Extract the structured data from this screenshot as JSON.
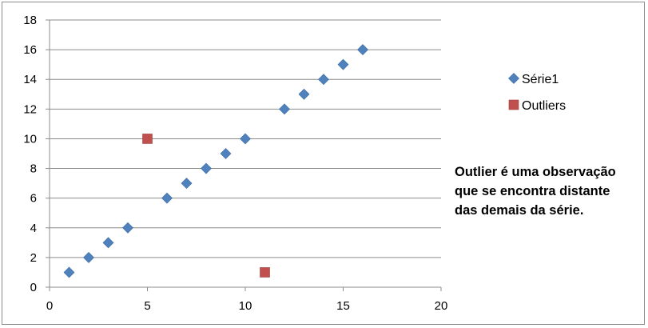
{
  "chart_data": {
    "type": "scatter",
    "title": "",
    "xlabel": "",
    "ylabel": "",
    "xlim": [
      0,
      20
    ],
    "ylim": [
      0,
      18
    ],
    "x_ticks": [
      0,
      5,
      10,
      15,
      20
    ],
    "y_ticks": [
      0,
      2,
      4,
      6,
      8,
      10,
      12,
      14,
      16,
      18
    ],
    "grid": "horizontal",
    "legend_position": "right",
    "series": [
      {
        "name": "Série1",
        "marker": "diamond",
        "color": "#4F81BD",
        "points": [
          {
            "x": 1,
            "y": 1
          },
          {
            "x": 2,
            "y": 2
          },
          {
            "x": 3,
            "y": 3
          },
          {
            "x": 4,
            "y": 4
          },
          {
            "x": 6,
            "y": 6
          },
          {
            "x": 7,
            "y": 7
          },
          {
            "x": 8,
            "y": 8
          },
          {
            "x": 9,
            "y": 9
          },
          {
            "x": 10,
            "y": 10
          },
          {
            "x": 12,
            "y": 12
          },
          {
            "x": 13,
            "y": 13
          },
          {
            "x": 14,
            "y": 14
          },
          {
            "x": 15,
            "y": 15
          },
          {
            "x": 16,
            "y": 16
          }
        ]
      },
      {
        "name": "Outliers",
        "marker": "square",
        "color": "#C0504D",
        "points": [
          {
            "x": 5,
            "y": 10
          },
          {
            "x": 11,
            "y": 1
          }
        ]
      }
    ],
    "annotation": [
      "Outlier é uma observação",
      "que se encontra distante",
      "das demais da série."
    ]
  }
}
